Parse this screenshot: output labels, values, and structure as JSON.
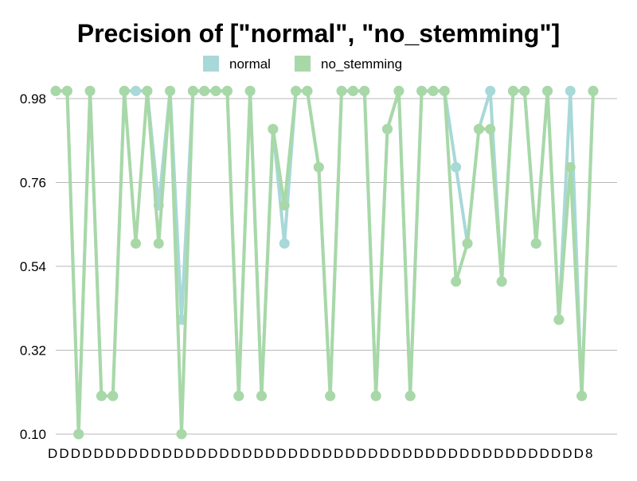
{
  "chart_data": {
    "type": "line",
    "title": "Precision of [\"normal\", \"no_stemming\"]",
    "xlabel": "",
    "ylabel": "",
    "ylim": [
      0.1,
      0.98
    ],
    "yticks": [
      "0.10",
      "0.32",
      "0.54",
      "0.76",
      "0.98"
    ],
    "legend_position": "top-center",
    "grid": true,
    "x_tick_labels_note": "48 overlapping category labels beginning with D (illegible)",
    "categories": [
      "D",
      "D",
      "D",
      "D",
      "D",
      "D",
      "D",
      "D",
      "D",
      "D",
      "D",
      "D",
      "D",
      "D",
      "D",
      "D",
      "D",
      "D",
      "D",
      "D",
      "D",
      "D",
      "D",
      "D",
      "D",
      "D",
      "D",
      "D",
      "D",
      "D",
      "D",
      "D",
      "D",
      "D",
      "D",
      "D",
      "D",
      "D",
      "D",
      "D",
      "D",
      "D",
      "D",
      "D",
      "D",
      "D",
      "D",
      "8"
    ],
    "series": [
      {
        "name": "normal",
        "color": "#a8d8d8",
        "values": [
          1,
          1,
          0.1,
          1,
          0.2,
          0.2,
          1,
          1,
          1,
          0.7,
          1,
          0.4,
          1,
          1,
          1,
          1,
          0.2,
          1,
          0.2,
          0.9,
          0.6,
          1,
          1,
          0.8,
          0.2,
          1,
          1,
          1,
          0.2,
          0.9,
          1,
          0.2,
          1,
          1,
          1,
          0.8,
          0.6,
          0.9,
          1,
          0.5,
          1,
          1,
          0.6,
          1,
          0.4,
          1,
          0.2,
          1
        ]
      },
      {
        "name": "no_stemming",
        "color": "#a8d8a8",
        "values": [
          1,
          1,
          0.1,
          1,
          0.2,
          0.2,
          1,
          0.6,
          1,
          0.6,
          1,
          0.1,
          1,
          1,
          1,
          1,
          0.2,
          1,
          0.2,
          0.9,
          0.7,
          1,
          1,
          0.8,
          0.2,
          1,
          1,
          1,
          0.2,
          0.9,
          1,
          0.2,
          1,
          1,
          1,
          0.5,
          0.6,
          0.9,
          0.9,
          0.5,
          1,
          1,
          0.6,
          1,
          0.4,
          0.8,
          0.2,
          1
        ]
      }
    ]
  }
}
